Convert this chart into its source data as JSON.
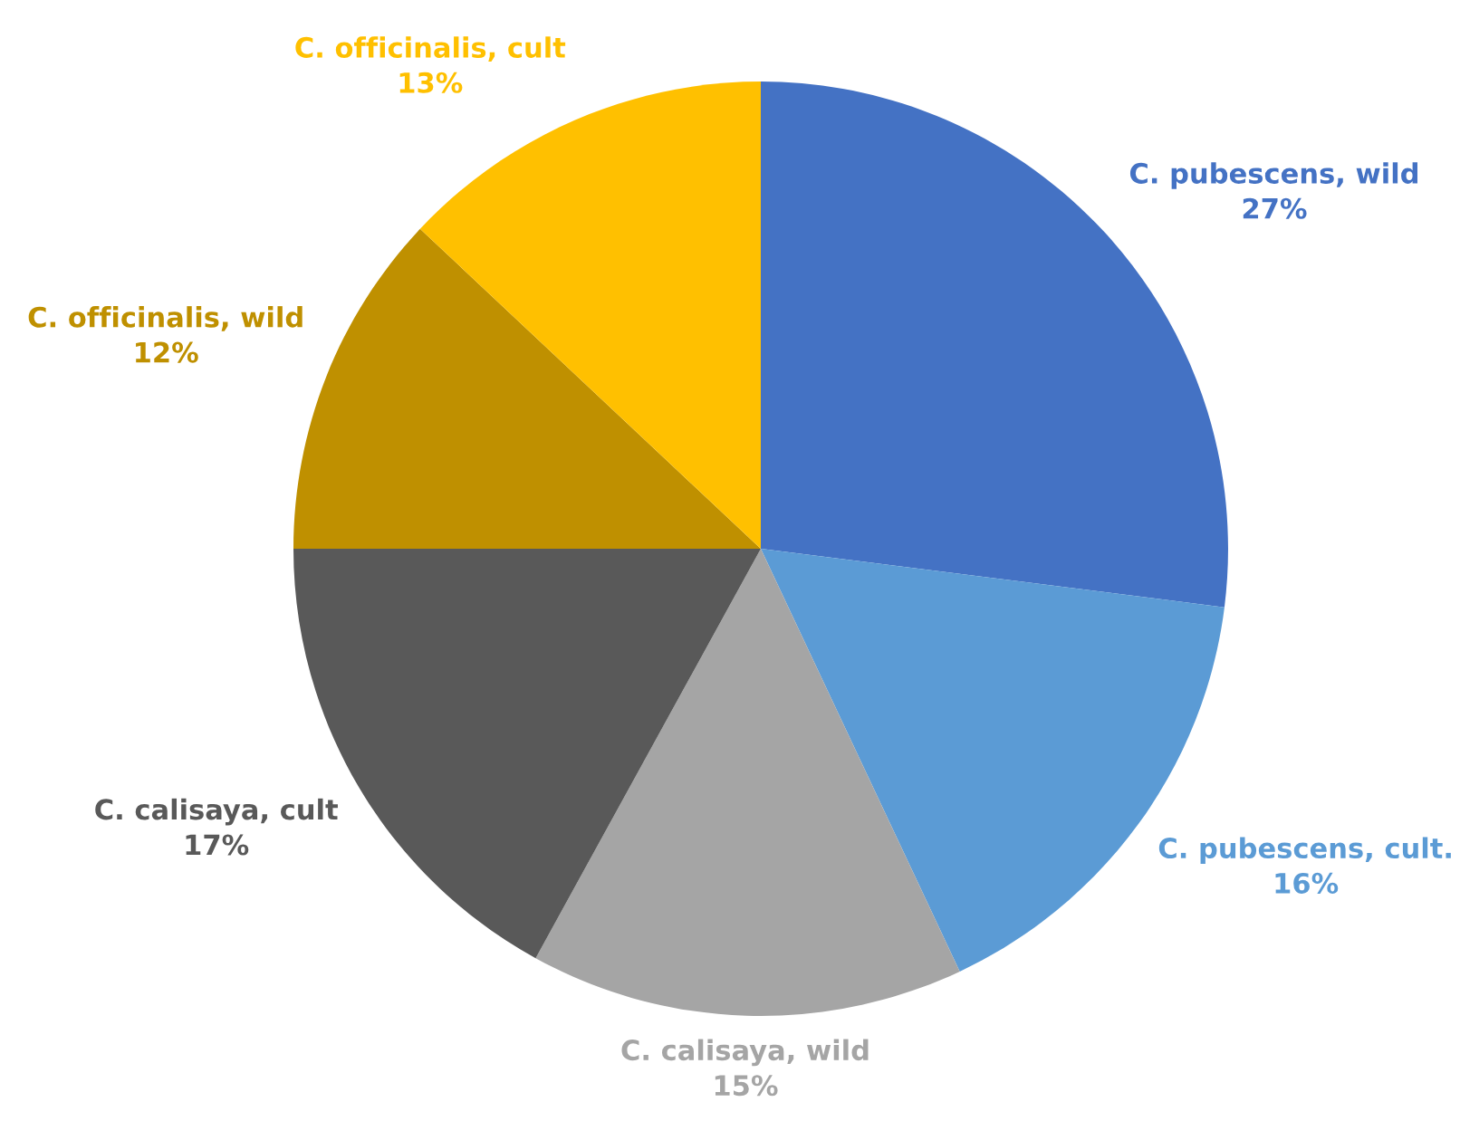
{
  "chart_data": {
    "type": "pie",
    "categories": [
      "C. pubescens, wild",
      "C. pubescens, cult.",
      "C. calisaya, wild",
      "C. calisaya, cult",
      "C. officinalis, wild",
      "C. officinalis, cult"
    ],
    "values": [
      27,
      16,
      15,
      17,
      12,
      13
    ],
    "colors": [
      "#4472c4",
      "#5b9bd5",
      "#a5a5a5",
      "#595959",
      "#bf9000",
      "#ffc000"
    ],
    "value_labels": [
      "27%",
      "16%",
      "15%",
      "17%",
      "12%",
      "13%"
    ]
  }
}
